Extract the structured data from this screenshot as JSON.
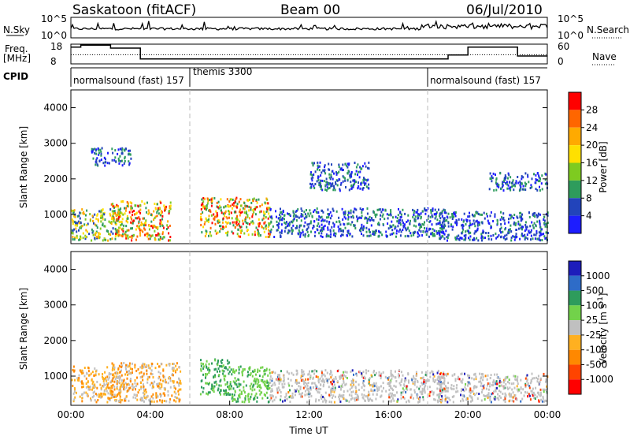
{
  "header": {
    "station": "Saskatoon (fitACF)",
    "beam": "Beam 00",
    "date": "06/Jul/2010"
  },
  "noise_panel": {
    "left_label": "N.Sky",
    "right_label": "N.Search",
    "left_ticks": [
      "10^5",
      "10^0"
    ],
    "right_ticks": [
      "10^5",
      "10^0"
    ]
  },
  "freq_panel": {
    "left_label_1": "Freq.",
    "left_label_2": "[MHz]",
    "left_ticks": [
      "18",
      "8"
    ],
    "right_ticks": [
      "60",
      "0"
    ],
    "right_label": "Nave",
    "freq_steps": [
      {
        "start": 0.0,
        "end": 0.5,
        "value": 16.5
      },
      {
        "start": 0.5,
        "end": 2.0,
        "value": 17.5
      },
      {
        "start": 2.0,
        "end": 3.5,
        "value": 16.0
      },
      {
        "start": 3.5,
        "end": 18.0,
        "value": 10.5
      },
      {
        "start": 18.0,
        "end": 19.0,
        "value": 10.5
      },
      {
        "start": 19.0,
        "end": 20.0,
        "value": 12.5
      },
      {
        "start": 20.0,
        "end": 22.5,
        "value": 16.5
      },
      {
        "start": 22.5,
        "end": 24.0,
        "value": 12.0
      }
    ],
    "nave_level": 28
  },
  "cpid": {
    "label": "CPID",
    "segments": [
      {
        "text": "normalsound (fast) 157",
        "start_hour": 0
      },
      {
        "text": "themis 3300",
        "start_hour": 6
      },
      {
        "text": "normalsound (fast) 157",
        "start_hour": 18
      }
    ]
  },
  "chart_data": [
    {
      "type": "heatmap",
      "title": "",
      "ylabel": "Slant Range [km]",
      "ylim": [
        180,
        4500
      ],
      "xlim": [
        0,
        24
      ],
      "yticks": [
        "1000",
        "2000",
        "3000",
        "4000"
      ],
      "colorbar_label": "Power [dB]",
      "colorbar_ticks": [
        "28",
        "24",
        "20",
        "16",
        "12",
        "8",
        "4"
      ],
      "colorbar_colors": [
        "#ff0000",
        "#ff6600",
        "#ffaa00",
        "#ffe000",
        "#7ecb20",
        "#2e9c5c",
        "#2244bb",
        "#1d1dff"
      ],
      "regions": [
        {
          "t": [
            0.0,
            2.5
          ],
          "r": [
            300,
            1200
          ],
          "level": "mid"
        },
        {
          "t": [
            2.0,
            5.0
          ],
          "r": [
            300,
            1400
          ],
          "level": "high"
        },
        {
          "t": [
            6.5,
            10.0
          ],
          "r": [
            400,
            1500
          ],
          "level": "high"
        },
        {
          "t": [
            10.0,
            19.0
          ],
          "r": [
            400,
            1200
          ],
          "level": "low"
        },
        {
          "t": [
            18.5,
            24.0
          ],
          "r": [
            300,
            1100
          ],
          "level": "low"
        },
        {
          "t": [
            1.0,
            3.0
          ],
          "r": [
            2400,
            2900
          ],
          "level": "low"
        },
        {
          "t": [
            12.0,
            15.0
          ],
          "r": [
            1700,
            2500
          ],
          "level": "low"
        },
        {
          "t": [
            21.0,
            24.0
          ],
          "r": [
            1700,
            2200
          ],
          "level": "low"
        }
      ]
    },
    {
      "type": "heatmap",
      "title": "",
      "ylabel": "Slant Range [km]",
      "ylim": [
        180,
        4500
      ],
      "xlim": [
        0,
        24
      ],
      "xticks": [
        "00:00",
        "04:00",
        "08:00",
        "12:00",
        "16:00",
        "20:00",
        "00:00"
      ],
      "xlabel": "Time UT",
      "yticks": [
        "1000",
        "2000",
        "3000",
        "4000"
      ],
      "colorbar_label": "Velocity [m s^-1]",
      "colorbar_ticks": [
        "1000",
        "500",
        "100",
        "25",
        "-25",
        "-100",
        "-500",
        "-1000"
      ],
      "colorbar_colors": [
        "#1d1dbb",
        "#2e6cc8",
        "#2e9c5c",
        "#72d24a",
        "#c0c0c0",
        "#ffb020",
        "#ff8800",
        "#ff4400",
        "#ff0000"
      ],
      "regions": [
        {
          "t": [
            0.0,
            2.5
          ],
          "r": [
            300,
            1300
          ],
          "level": "neg"
        },
        {
          "t": [
            2.0,
            5.5
          ],
          "r": [
            300,
            1400
          ],
          "level": "mixed"
        },
        {
          "t": [
            6.5,
            8.0
          ],
          "r": [
            500,
            1500
          ],
          "level": "pos"
        },
        {
          "t": [
            8.0,
            10.0
          ],
          "r": [
            300,
            1300
          ],
          "level": "pos_light"
        },
        {
          "t": [
            10.0,
            19.0
          ],
          "r": [
            300,
            1200
          ],
          "level": "zero"
        },
        {
          "t": [
            18.5,
            24.0
          ],
          "r": [
            300,
            1100
          ],
          "level": "zero"
        }
      ]
    }
  ]
}
